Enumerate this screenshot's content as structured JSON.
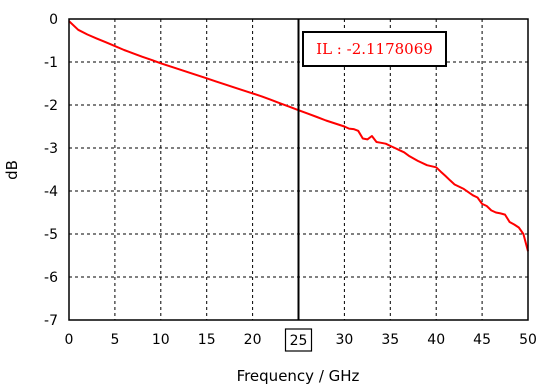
{
  "chart_data": {
    "type": "line",
    "xlabel": "Frequency / GHz",
    "ylabel": "dB",
    "xlim": [
      0,
      50
    ],
    "ylim": [
      -7,
      0
    ],
    "x_ticks": [
      0,
      5,
      10,
      15,
      20,
      25,
      30,
      35,
      40,
      45,
      50
    ],
    "y_ticks": [
      0,
      -1,
      -2,
      -3,
      -4,
      -5,
      -6,
      -7
    ],
    "grid": true,
    "grid_style": "dashed",
    "series": [
      {
        "color": "#ff0000",
        "x": [
          0,
          1,
          2,
          3,
          4,
          5,
          6,
          7,
          8,
          9,
          10,
          11,
          12,
          13,
          14,
          15,
          16,
          17,
          18,
          19,
          20,
          21,
          22,
          23,
          24,
          25,
          26,
          27,
          28,
          29,
          30,
          30.5,
          31,
          31.5,
          32,
          32.5,
          33,
          33.5,
          34,
          34.5,
          35,
          35.5,
          36,
          36.5,
          37,
          38,
          39,
          40,
          40.5,
          41,
          41.5,
          42,
          43,
          44,
          44.5,
          45,
          45.5,
          46,
          46.5,
          47,
          47.5,
          48,
          48.5,
          49,
          49.5,
          50
        ],
        "y": [
          -0.05,
          -0.25,
          -0.36,
          -0.45,
          -0.54,
          -0.63,
          -0.72,
          -0.8,
          -0.88,
          -0.95,
          -1.03,
          -1.1,
          -1.17,
          -1.24,
          -1.31,
          -1.38,
          -1.45,
          -1.52,
          -1.59,
          -1.66,
          -1.73,
          -1.8,
          -1.88,
          -1.96,
          -2.04,
          -2.12,
          -2.2,
          -2.28,
          -2.36,
          -2.43,
          -2.5,
          -2.55,
          -2.56,
          -2.6,
          -2.78,
          -2.8,
          -2.72,
          -2.86,
          -2.88,
          -2.9,
          -2.95,
          -3.0,
          -3.05,
          -3.1,
          -3.18,
          -3.3,
          -3.4,
          -3.45,
          -3.55,
          -3.65,
          -3.75,
          -3.85,
          -3.95,
          -4.1,
          -4.15,
          -4.3,
          -4.35,
          -4.45,
          -4.5,
          -4.52,
          -4.55,
          -4.72,
          -4.78,
          -4.85,
          -5.0,
          -5.4
        ]
      }
    ],
    "marker": {
      "x": 25,
      "x_label": "25",
      "annotation": "IL : -2.1178069",
      "color": "#ff0000",
      "line_color": "#000000"
    }
  }
}
